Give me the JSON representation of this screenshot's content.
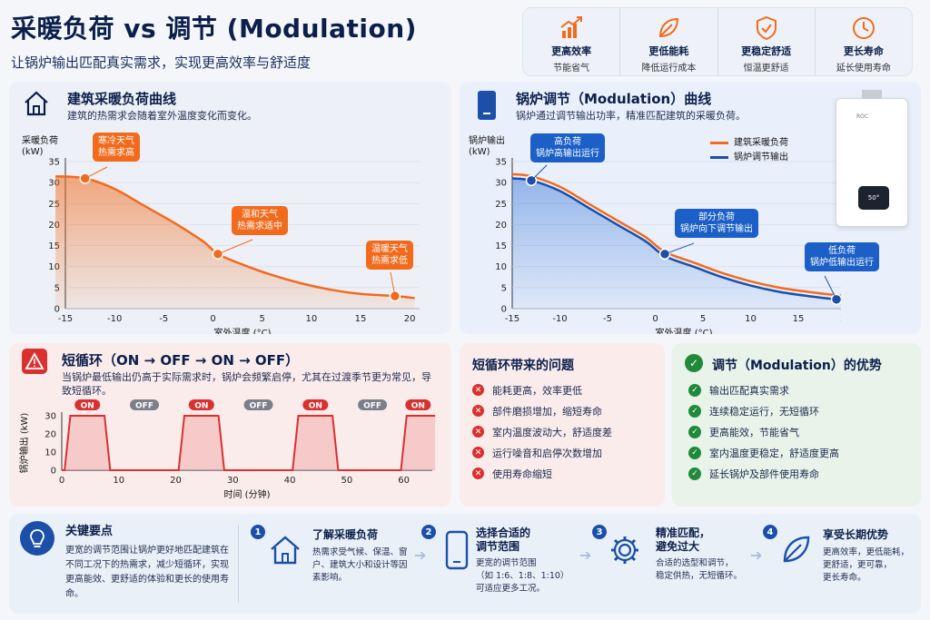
{
  "header": {
    "title": "采暖负荷 vs 调节 (Modulation)",
    "subtitle": "让锅炉输出匹配真实需求，实现更高效率与舒适度",
    "benefits": [
      {
        "title": "更高效率",
        "sub": "节能省气",
        "icon": "chart-up-icon"
      },
      {
        "title": "更低能耗",
        "sub": "降低运行成本",
        "icon": "leaf-icon"
      },
      {
        "title": "更稳定舒适",
        "sub": "恒温更舒适",
        "icon": "shield-check-icon"
      },
      {
        "title": "更长寿命",
        "sub": "延长使用寿命",
        "icon": "clock-icon"
      }
    ]
  },
  "load_panel": {
    "title": "建筑采暖负荷曲线",
    "desc": "建筑的热需求会随着室外温度变化而变化。",
    "callouts": [
      "寒冷天气\n热需求高",
      "温和天气\n热需求适中",
      "温暖天气\n热需求低"
    ]
  },
  "mod_panel": {
    "title": "锅炉调节（Modulation）曲线",
    "desc": "锅炉通过调节输出功率，精准匹配建筑的采暖负荷。",
    "callouts": [
      "高负荷\n锅炉高输出运行",
      "部分负荷\n锅炉向下调节输出",
      "低负荷\n锅炉低输出运行"
    ],
    "boiler_label": "ROC",
    "boiler_display": "50°"
  },
  "short_cycle": {
    "title": "短循环（ON → OFF → ON → OFF）",
    "desc": "当锅炉最低输出仍高于实际需求时，锅炉会频繁启停，尤其在过渡季节更为常见，导致短循环。",
    "on_label": "ON",
    "off_label": "OFF"
  },
  "problems": {
    "title": "短循环带来的问题",
    "items": [
      "能耗更高，效率更低",
      "部件磨损增加，缩短寿命",
      "室内温度波动大，舒适度差",
      "运行噪音和启停次数增加",
      "使用寿命缩短"
    ]
  },
  "advantages": {
    "title": "调节（Modulation）的优势",
    "items": [
      "输出匹配真实需求",
      "连续稳定运行，无短循环",
      "更高能效，节能省气",
      "室内温度更稳定，舒适度更高",
      "延长锅炉及部件使用寿命"
    ]
  },
  "bottom": {
    "key_title": "关键要点",
    "key_desc": "更宽的调节范围让锅炉更好地匹配建筑在不同工况下的热需求，减少短循环，实现更高能效、更舒适的体验和更长的使用寿命。",
    "steps": [
      {
        "num": "1",
        "title": "了解采暖负荷",
        "desc": "热需求受气候、保温、窗户、建筑大小和设计等因素影响。",
        "icon": "house-icon"
      },
      {
        "num": "2",
        "title": "选择合适的\n调节范围",
        "desc": "更宽的调节范围\n（如 1:6、1:8、1:10）\n可适应更多工况。",
        "icon": "phone-icon"
      },
      {
        "num": "3",
        "title": "精准匹配，\n避免过大",
        "desc": "合适的选型和调节，\n稳定供热，无短循环。",
        "icon": "gear-icon"
      },
      {
        "num": "4",
        "title": "享受长期优势",
        "desc": "更高效率，更低能耗，\n更舒适，更可靠，\n更长寿命。",
        "icon": "leaf-icon"
      }
    ]
  },
  "colors": {
    "orange": "#f26b1d",
    "blue": "#1b4fa8",
    "red": "#d93030",
    "green": "#1f8a3b"
  },
  "chart_data": [
    {
      "type": "area",
      "ylabel": "采暖负荷\n(kW)",
      "xlabel": "室外温度 (°C)",
      "xlim": [
        -15,
        21
      ],
      "ylim": [
        0,
        35
      ],
      "xticks": [
        -15,
        -10,
        -5,
        0,
        5,
        10,
        15,
        20
      ],
      "yticks": [
        0,
        5,
        10,
        15,
        20,
        25,
        30,
        35
      ],
      "series": [
        {
          "x": [
            -16,
            -13,
            -10,
            -7,
            -4,
            -1,
            0.5,
            3,
            6,
            9,
            12,
            15,
            18.5,
            20.5
          ],
          "y": [
            31.5,
            31,
            28.5,
            24.5,
            20.5,
            16,
            13,
            10.5,
            8,
            6,
            4.5,
            3.5,
            3,
            2.5
          ]
        }
      ],
      "markers": [
        {
          "x": -13,
          "y": 31
        },
        {
          "x": 0.5,
          "y": 13
        },
        {
          "x": 18.5,
          "y": 3
        }
      ]
    },
    {
      "type": "line",
      "ylabel": "锅炉输出\n(kW)",
      "xlabel": "室外温度 (°C)",
      "xlim": [
        -15,
        21
      ],
      "ylim": [
        0,
        35
      ],
      "xticks": [
        -15,
        -10,
        -5,
        0,
        5,
        10,
        15,
        20
      ],
      "yticks": [
        0,
        5,
        10,
        15,
        20,
        25,
        30,
        35
      ],
      "series": [
        {
          "name": "建筑采暖负荷",
          "x": [
            -15,
            -13,
            -10,
            -7,
            -4,
            -1,
            1,
            4,
            7,
            10,
            13,
            16,
            19,
            21
          ],
          "y": [
            32,
            31.5,
            29,
            25,
            21,
            17,
            13.5,
            11,
            8.5,
            6.5,
            5,
            4,
            3.2,
            2.8
          ]
        },
        {
          "name": "锅炉调节输出",
          "x": [
            -15,
            -13,
            -10,
            -7,
            -4,
            -1,
            1,
            4,
            7,
            10,
            13,
            16,
            19,
            21
          ],
          "y": [
            31,
            30.5,
            28,
            24,
            20,
            16,
            12.5,
            10,
            7.5,
            5.5,
            4,
            3,
            2.2,
            1.8
          ]
        }
      ],
      "markers": [
        {
          "x": -13,
          "y": 30.5
        },
        {
          "x": 1,
          "y": 13
        },
        {
          "x": 19,
          "y": 2.2
        }
      ]
    },
    {
      "type": "area",
      "ylabel": "锅炉输出 (kW)",
      "xlabel": "时间 (分钟)",
      "xlim": [
        0,
        65
      ],
      "ylim": [
        0,
        30
      ],
      "xticks": [
        0,
        10,
        20,
        30,
        40,
        50,
        60
      ],
      "yticks": [
        0,
        10,
        20,
        30
      ],
      "series": [
        {
          "x": [
            0,
            0.5,
            1.5,
            7.5,
            8.5,
            20.5,
            21.5,
            27.5,
            28.5,
            40.5,
            41.5,
            47.5,
            48.5,
            59.5,
            60.5,
            66
          ],
          "y": [
            0,
            0,
            30,
            30,
            0,
            0,
            30,
            30,
            0,
            0,
            30,
            30,
            0,
            0,
            30,
            30
          ]
        }
      ],
      "states": [
        {
          "label": "ON",
          "x": 4.5
        },
        {
          "label": "OFF",
          "x": 14.5
        },
        {
          "label": "ON",
          "x": 24.5
        },
        {
          "label": "OFF",
          "x": 34.5
        },
        {
          "label": "ON",
          "x": 44.5
        },
        {
          "label": "OFF",
          "x": 54.5
        },
        {
          "label": "ON",
          "x": 62.5
        }
      ]
    }
  ]
}
